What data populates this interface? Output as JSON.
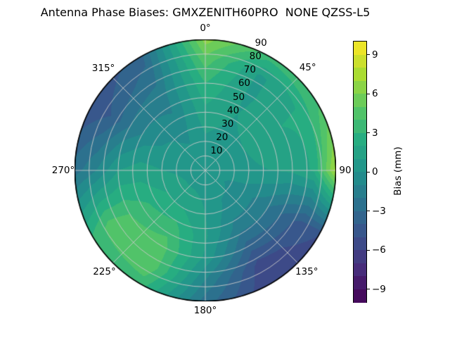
{
  "title": "Antenna Phase Biases: GMXZENITH60PRO  NONE QZSS-L5",
  "colors": {
    "background": "#ffffff",
    "grid_line": "#c9c9c9",
    "outline": "#000000",
    "viridis_stops": [
      "#440154",
      "#472c7a",
      "#3b518b",
      "#2c718e",
      "#21918c",
      "#27ad81",
      "#5cc863",
      "#aadc32",
      "#fde725"
    ]
  },
  "chart_data": {
    "type": "heatmap",
    "projection": "polar",
    "title": "Antenna Phase Biases: GMXZENITH60PRO  NONE QZSS-L5",
    "theta_ticks": [
      {
        "label": "0°",
        "angle": 0
      },
      {
        "label": "45°",
        "angle": 45
      },
      {
        "label": "90",
        "angle": 90
      },
      {
        "label": "135°",
        "angle": 135
      },
      {
        "label": "180°",
        "angle": 180
      },
      {
        "label": "225°",
        "angle": 225
      },
      {
        "label": "270°",
        "angle": 270
      },
      {
        "label": "315°",
        "angle": 315
      }
    ],
    "r_ticks": [
      10,
      20,
      30,
      40,
      50,
      60,
      70,
      80,
      90
    ],
    "r_max": 90,
    "r_label_angle_deg": 22.5,
    "grid": true,
    "colorbar": {
      "label": "Bias (mm)",
      "tick_labels": [
        "9",
        "6",
        "3",
        "0",
        "−3",
        "−6",
        "−9"
      ],
      "tick_values": [
        9,
        6,
        3,
        0,
        -3,
        -6,
        -9
      ],
      "vmin": -10,
      "vmax": 10,
      "bands": 20,
      "colormap": "viridis"
    },
    "azimuth_deg": [
      0,
      30,
      60,
      90,
      120,
      150,
      180,
      210,
      240,
      270,
      300,
      330
    ],
    "zenith_deg": [
      0,
      15,
      30,
      45,
      60,
      75,
      90
    ],
    "bias_mm": [
      [
        0.5,
        0.5,
        0.5,
        0.5,
        0.5,
        0.5,
        0.5,
        0.5,
        0.5,
        0.5,
        0.5,
        0.5
      ],
      [
        0.6,
        0.5,
        0.5,
        0.2,
        0.0,
        0.3,
        0.8,
        1.0,
        1.0,
        0.8,
        0.3,
        0.2
      ],
      [
        1.2,
        0.8,
        1.0,
        0.8,
        -0.5,
        -0.3,
        1.0,
        2.0,
        2.0,
        1.0,
        0.2,
        -0.3
      ],
      [
        2.0,
        1.0,
        1.8,
        1.0,
        -1.5,
        -1.5,
        1.2,
        3.5,
        3.0,
        1.5,
        -0.5,
        -1.0
      ],
      [
        3.0,
        0.8,
        2.0,
        1.2,
        -3.0,
        -3.5,
        0.8,
        4.5,
        4.0,
        1.0,
        -2.0,
        -1.5
      ],
      [
        4.5,
        0.8,
        2.2,
        2.2,
        -4.5,
        -5.5,
        -1.0,
        4.8,
        4.5,
        -1.0,
        -4.0,
        -2.5
      ],
      [
        6.5,
        3.5,
        4.0,
        7.5,
        -5.0,
        -6.0,
        -2.5,
        3.5,
        3.0,
        -2.5,
        -5.0,
        -3.5
      ]
    ]
  }
}
